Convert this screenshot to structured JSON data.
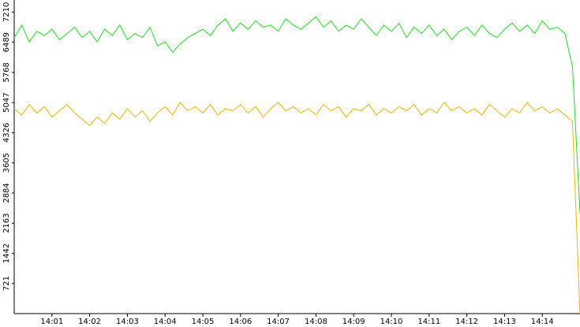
{
  "chart_data": {
    "type": "line",
    "x": [
      0,
      0.2,
      0.4,
      0.6,
      0.8,
      1,
      1.2,
      1.4,
      1.6,
      1.8,
      2,
      2.2,
      2.4,
      2.6,
      2.8,
      3,
      3.2,
      3.4,
      3.6,
      3.8,
      4,
      4.2,
      4.4,
      4.6,
      4.8,
      5,
      5.2,
      5.4,
      5.6,
      5.8,
      6,
      6.2,
      6.4,
      6.6,
      6.8,
      7,
      7.2,
      7.4,
      7.6,
      7.8,
      8,
      8.2,
      8.4,
      8.6,
      8.8,
      9,
      9.2,
      9.4,
      9.6,
      9.8,
      10,
      10.2,
      10.4,
      10.6,
      10.8,
      11,
      11.2,
      11.4,
      11.6,
      11.8,
      12,
      12.2,
      12.4,
      12.6,
      12.8,
      13,
      13.2,
      13.4,
      13.6,
      13.8,
      14,
      14.2,
      14.4,
      14.6,
      14.8,
      15
    ],
    "series": [
      {
        "color": "#22dd22",
        "values": [
          6600,
          6900,
          6500,
          6750,
          6650,
          6800,
          6550,
          6700,
          6850,
          6600,
          6750,
          6500,
          6800,
          6650,
          6900,
          6550,
          6700,
          6600,
          6850,
          6400,
          6500,
          6250,
          6450,
          6600,
          6700,
          6800,
          6650,
          6900,
          7050,
          6750,
          6950,
          6800,
          7000,
          6850,
          6900,
          6750,
          7050,
          6900,
          6800,
          6950,
          7100,
          6850,
          7000,
          6750,
          6900,
          6800,
          7050,
          6850,
          6650,
          6900,
          6750,
          6950,
          6600,
          6850,
          6700,
          6900,
          6650,
          6800,
          6550,
          6750,
          6850,
          6650,
          6900,
          6700,
          6600,
          6800,
          6950,
          6750,
          6900,
          6700,
          7000,
          6800,
          6850,
          6700,
          5900,
          2400
        ]
      },
      {
        "color": "#f0b400",
        "values": [
          4900,
          4750,
          5000,
          4800,
          4950,
          4700,
          4850,
          5000,
          4800,
          4650,
          4500,
          4700,
          4550,
          4800,
          4650,
          4900,
          4700,
          4850,
          4600,
          4800,
          4950,
          4750,
          5050,
          4850,
          4950,
          4800,
          5000,
          4750,
          4900,
          4850,
          5000,
          4800,
          4950,
          4700,
          4900,
          5050,
          4850,
          4950,
          4800,
          4900,
          4750,
          5000,
          4850,
          4950,
          4700,
          4900,
          4850,
          5000,
          4750,
          4900,
          4800,
          4950,
          4850,
          5000,
          4750,
          4900,
          4800,
          5050,
          4850,
          4950,
          4800,
          4900,
          4750,
          5000,
          4850,
          4700,
          4900,
          4800,
          5050,
          4850,
          4950,
          4800,
          4900,
          4750,
          4600,
          0
        ]
      }
    ],
    "xlim": [
      0,
      15
    ],
    "xticks": [
      {
        "value": 1,
        "label": "14:01"
      },
      {
        "value": 2,
        "label": "14:02"
      },
      {
        "value": 3,
        "label": "14:03"
      },
      {
        "value": 4,
        "label": "14:04"
      },
      {
        "value": 5,
        "label": "14:05"
      },
      {
        "value": 6,
        "label": "14:06"
      },
      {
        "value": 7,
        "label": "14:07"
      },
      {
        "value": 8,
        "label": "14:08"
      },
      {
        "value": 9,
        "label": "14:09"
      },
      {
        "value": 10,
        "label": "14:10"
      },
      {
        "value": 11,
        "label": "14:11"
      },
      {
        "value": 12,
        "label": "14:12"
      },
      {
        "value": 13,
        "label": "14:13"
      },
      {
        "value": 14,
        "label": "14:14"
      }
    ],
    "ylim": [
      0,
      7500
    ],
    "yticks": [
      721,
      1442,
      2163,
      2884,
      3605,
      4326,
      5047,
      5768,
      6489,
      7210
    ]
  }
}
